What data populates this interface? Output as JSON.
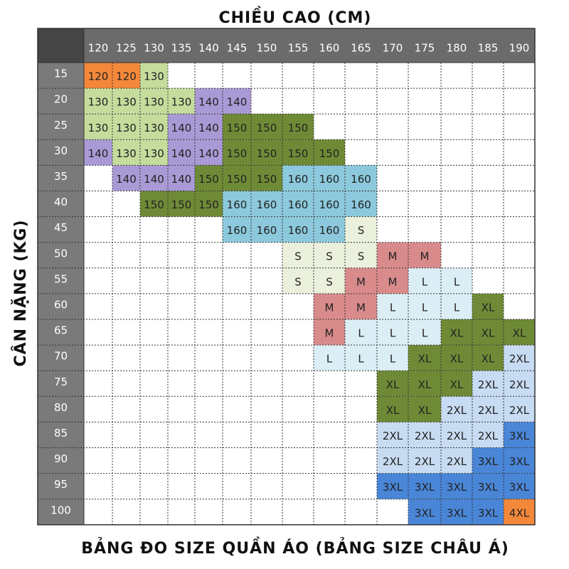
{
  "top_label": "CHIỀU CAO (CM)",
  "side_label": "CÂN NẶNG (KG)",
  "caption": "BẢNG ĐO SIZE QUẦN ÁO (BẢNG SIZE CHÂU Á)",
  "columns": [
    120,
    125,
    130,
    135,
    140,
    145,
    150,
    155,
    160,
    165,
    170,
    175,
    180,
    185,
    190
  ],
  "palette": {
    "120": "#f4883a",
    "130": "#c5dc9c",
    "140": "#a99ad6",
    "150": "#6f8a36",
    "160": "#8cc9dc",
    "S": "#eaf0dc",
    "M": "#d98b8b",
    "L": "#dbeef5",
    "XL": "#6f8a36",
    "2XL": "#c7dbf2",
    "3XL": "#4a86d8",
    "4XL": "#f4883a"
  },
  "rows": [
    {
      "weight": 15,
      "cells": [
        "120",
        "120",
        "130",
        null,
        null,
        null,
        null,
        null,
        null,
        null,
        null,
        null,
        null,
        null,
        null
      ]
    },
    {
      "weight": 20,
      "cells": [
        "130",
        "130",
        "130",
        "130",
        "140",
        "140",
        null,
        null,
        null,
        null,
        null,
        null,
        null,
        null,
        null
      ]
    },
    {
      "weight": 25,
      "cells": [
        "130",
        "130",
        "130",
        "140",
        "140",
        "150",
        "150",
        "150",
        null,
        null,
        null,
        null,
        null,
        null,
        null
      ]
    },
    {
      "weight": 30,
      "cells": [
        "140",
        "130",
        "130",
        "140",
        "140",
        "150",
        "150",
        "150",
        "150",
        null,
        null,
        null,
        null,
        null,
        null
      ]
    },
    {
      "weight": 35,
      "cells": [
        null,
        "140",
        "140",
        "140",
        "150",
        "150",
        "150",
        "160",
        "160",
        "160",
        null,
        null,
        null,
        null,
        null
      ]
    },
    {
      "weight": 40,
      "cells": [
        null,
        null,
        "150",
        "150",
        "150",
        "160",
        "160",
        "160",
        "160",
        "160",
        null,
        null,
        null,
        null,
        null
      ]
    },
    {
      "weight": 45,
      "cells": [
        null,
        null,
        null,
        null,
        null,
        "160",
        "160",
        "160",
        "160",
        "S",
        null,
        null,
        null,
        null,
        null
      ]
    },
    {
      "weight": 50,
      "cells": [
        null,
        null,
        null,
        null,
        null,
        null,
        null,
        "S",
        "S",
        "S",
        "M",
        "M",
        null,
        null,
        null
      ]
    },
    {
      "weight": 55,
      "cells": [
        null,
        null,
        null,
        null,
        null,
        null,
        null,
        "S",
        "S",
        "M",
        "M",
        "L",
        "L",
        null,
        null
      ]
    },
    {
      "weight": 60,
      "cells": [
        null,
        null,
        null,
        null,
        null,
        null,
        null,
        null,
        "M",
        "M",
        "L",
        "L",
        "L",
        "XL",
        null
      ]
    },
    {
      "weight": 65,
      "cells": [
        null,
        null,
        null,
        null,
        null,
        null,
        null,
        null,
        "M",
        "L",
        "L",
        "L",
        "XL",
        "XL",
        "XL"
      ]
    },
    {
      "weight": 70,
      "cells": [
        null,
        null,
        null,
        null,
        null,
        null,
        null,
        null,
        "L",
        "L",
        "L",
        "XL",
        "XL",
        "XL",
        "2XL"
      ]
    },
    {
      "weight": 75,
      "cells": [
        null,
        null,
        null,
        null,
        null,
        null,
        null,
        null,
        null,
        null,
        "XL",
        "XL",
        "XL",
        "2XL",
        "2XL"
      ]
    },
    {
      "weight": 80,
      "cells": [
        null,
        null,
        null,
        null,
        null,
        null,
        null,
        null,
        null,
        null,
        "XL",
        "XL",
        "2XL",
        "2XL",
        "2XL"
      ]
    },
    {
      "weight": 85,
      "cells": [
        null,
        null,
        null,
        null,
        null,
        null,
        null,
        null,
        null,
        null,
        "2XL",
        "2XL",
        "2XL",
        "2XL",
        "3XL"
      ]
    },
    {
      "weight": 90,
      "cells": [
        null,
        null,
        null,
        null,
        null,
        null,
        null,
        null,
        null,
        null,
        "2XL",
        "2XL",
        "2XL",
        "3XL",
        "3XL"
      ]
    },
    {
      "weight": 95,
      "cells": [
        null,
        null,
        null,
        null,
        null,
        null,
        null,
        null,
        null,
        null,
        "3XL",
        "3XL",
        "3XL",
        "3XL",
        "3XL"
      ]
    },
    {
      "weight": 100,
      "cells": [
        null,
        null,
        null,
        null,
        null,
        null,
        null,
        null,
        null,
        null,
        null,
        "3XL",
        "3XL",
        "3XL",
        "4XL"
      ]
    }
  ]
}
